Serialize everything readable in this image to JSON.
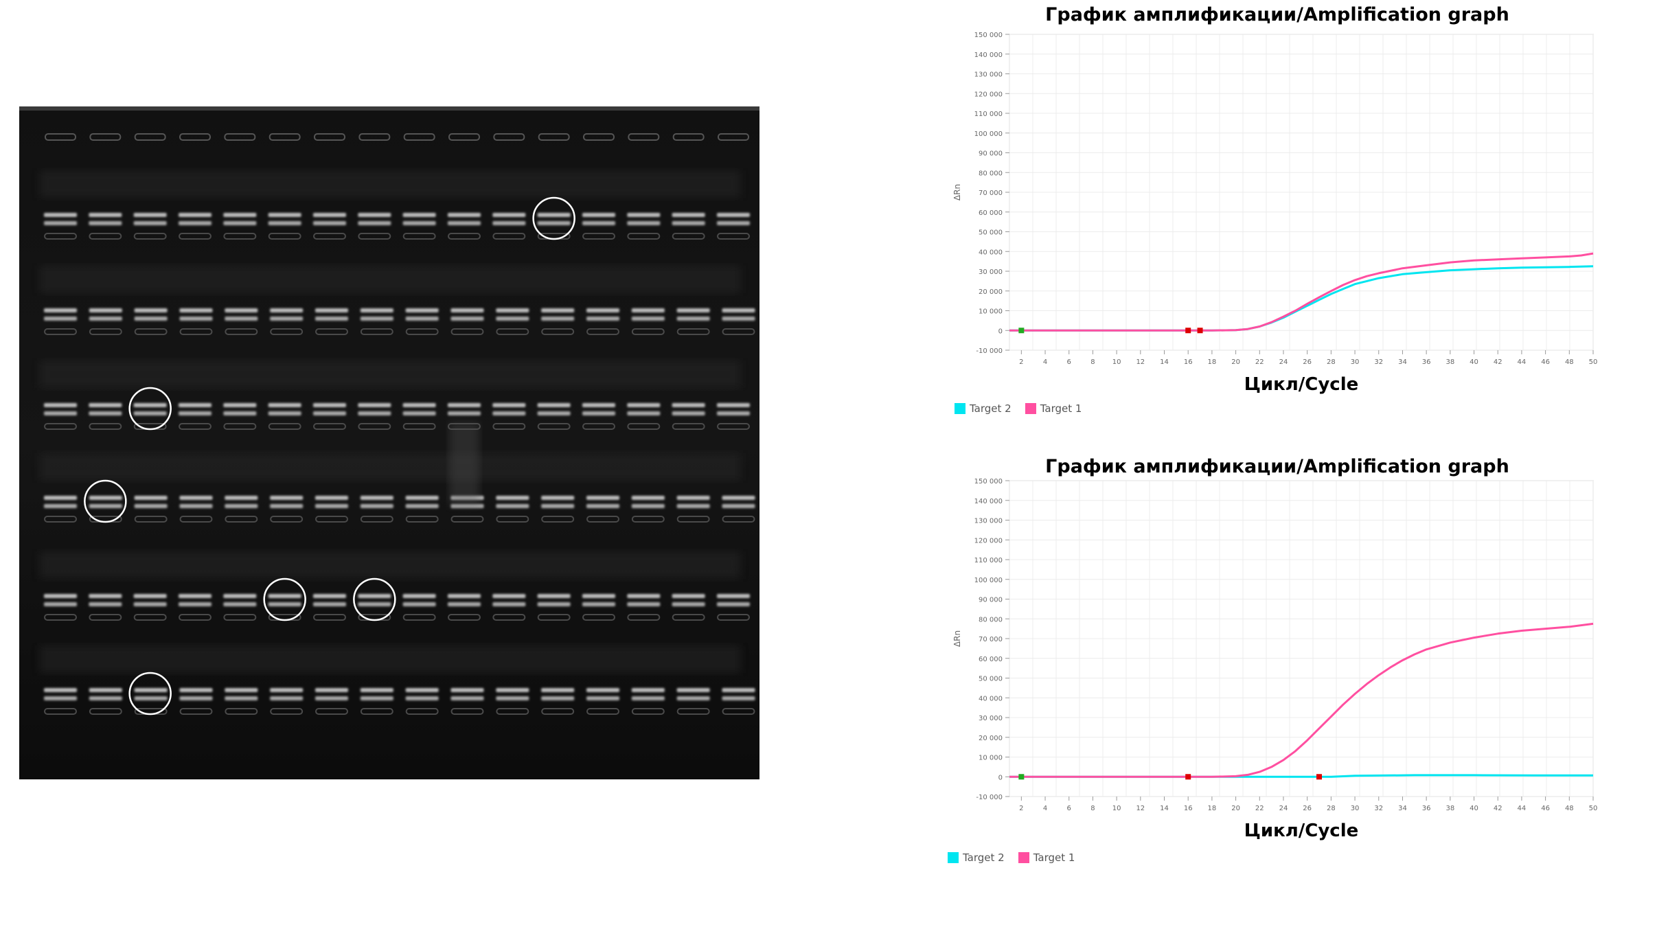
{
  "gel": {
    "rows": 6,
    "lanes": 16,
    "colors": {
      "background": "#151515",
      "band": "#dcdcdc",
      "circle": "#ffffff"
    },
    "circled": [
      [
        0,
        11
      ],
      [
        2,
        2
      ],
      [
        3,
        1
      ],
      [
        4,
        5
      ],
      [
        4,
        7
      ],
      [
        5,
        2
      ]
    ]
  },
  "chart_data": [
    {
      "type": "line",
      "title": "График амплификации/Amplification graph",
      "xlabel": "Цикл/Cycle",
      "ylabel": "ΔRn",
      "xlim": [
        1,
        50
      ],
      "ylim": [
        -10000,
        150000
      ],
      "y_ticks": [
        -10000,
        0,
        10000,
        20000,
        30000,
        40000,
        50000,
        60000,
        70000,
        80000,
        90000,
        100000,
        110000,
        120000,
        130000,
        140000,
        150000
      ],
      "y_tick_labels": [
        "-10 000",
        "0",
        "10 000",
        "20 000",
        "30 000",
        "40 000",
        "50 000",
        "60 000",
        "70 000",
        "80 000",
        "90 000",
        "100 000",
        "110 000",
        "120 000",
        "130 000",
        "140 000",
        "150 000"
      ],
      "x_ticks": [
        2,
        4,
        6,
        8,
        10,
        12,
        14,
        16,
        18,
        20,
        22,
        24,
        26,
        28,
        30,
        32,
        34,
        36,
        38,
        40,
        42,
        44,
        46,
        48,
        50
      ],
      "grid": true,
      "legend_position": "bottom-left",
      "series": [
        {
          "name": "Target 2",
          "color": "#00e5f0",
          "x": [
            1,
            5,
            10,
            15,
            18,
            20,
            21,
            22,
            23,
            24,
            25,
            26,
            27,
            28,
            29,
            30,
            31,
            32,
            34,
            36,
            38,
            40,
            42,
            44,
            46,
            48,
            50
          ],
          "y": [
            0,
            0,
            0,
            0,
            0,
            200,
            700,
            2000,
            4000,
            6500,
            9500,
            12500,
            15500,
            18500,
            21000,
            23500,
            25000,
            26500,
            28500,
            29500,
            30500,
            31000,
            31500,
            31800,
            32000,
            32200,
            32500
          ]
        },
        {
          "name": "Target 1",
          "color": "#ff4fa0",
          "x": [
            1,
            5,
            10,
            15,
            18,
            20,
            21,
            22,
            23,
            24,
            25,
            26,
            27,
            28,
            29,
            30,
            31,
            32,
            34,
            36,
            38,
            40,
            42,
            44,
            46,
            48,
            49,
            50
          ],
          "y": [
            0,
            0,
            0,
            0,
            0,
            200,
            700,
            2000,
            4200,
            7000,
            10000,
            13500,
            16800,
            20000,
            23000,
            25500,
            27500,
            29000,
            31500,
            33000,
            34500,
            35500,
            36000,
            36500,
            37000,
            37500,
            38000,
            39000
          ]
        }
      ],
      "markers": [
        {
          "x": 2,
          "y": 0,
          "color": "#22aa22"
        },
        {
          "x": 16,
          "y": 0,
          "color": "#dd0000"
        },
        {
          "x": 17,
          "y": 0,
          "color": "#dd0000"
        }
      ]
    },
    {
      "type": "line",
      "title": "График амплификации/Amplification graph",
      "xlabel": "Цикл/Cycle",
      "ylabel": "ΔRn",
      "xlim": [
        1,
        50
      ],
      "ylim": [
        -10000,
        150000
      ],
      "y_ticks": [
        -10000,
        0,
        10000,
        20000,
        30000,
        40000,
        50000,
        60000,
        70000,
        80000,
        90000,
        100000,
        110000,
        120000,
        130000,
        140000,
        150000
      ],
      "y_tick_labels": [
        "-10 000",
        "0",
        "10 000",
        "20 000",
        "30 000",
        "40 000",
        "50 000",
        "60 000",
        "70 000",
        "80 000",
        "90 000",
        "100 000",
        "110 000",
        "120 000",
        "130 000",
        "140 000",
        "150 000"
      ],
      "x_ticks": [
        2,
        4,
        6,
        8,
        10,
        12,
        14,
        16,
        18,
        20,
        22,
        24,
        26,
        28,
        30,
        32,
        34,
        36,
        38,
        40,
        42,
        44,
        46,
        48,
        50
      ],
      "grid": true,
      "legend_position": "bottom-left",
      "series": [
        {
          "name": "Target 2",
          "color": "#00e5f0",
          "x": [
            1,
            10,
            20,
            25,
            28,
            30,
            35,
            40,
            45,
            50
          ],
          "y": [
            0,
            0,
            0,
            0,
            0,
            500,
            800,
            800,
            700,
            700
          ]
        },
        {
          "name": "Target 1",
          "color": "#ff4fa0",
          "x": [
            1,
            10,
            18,
            20,
            21,
            22,
            23,
            24,
            25,
            26,
            27,
            28,
            29,
            30,
            31,
            32,
            33,
            34,
            35,
            36,
            38,
            40,
            42,
            44,
            46,
            48,
            50
          ],
          "y": [
            0,
            0,
            0,
            300,
            1000,
            2500,
            5000,
            8500,
            13000,
            18500,
            24500,
            30500,
            36500,
            42000,
            47000,
            51500,
            55500,
            59000,
            62000,
            64500,
            68000,
            70500,
            72500,
            74000,
            75000,
            76000,
            77500
          ]
        }
      ],
      "markers": [
        {
          "x": 2,
          "y": 0,
          "color": "#22aa22"
        },
        {
          "x": 16,
          "y": 0,
          "color": "#dd0000"
        },
        {
          "x": 27,
          "y": 0,
          "color": "#dd0000"
        }
      ]
    }
  ]
}
